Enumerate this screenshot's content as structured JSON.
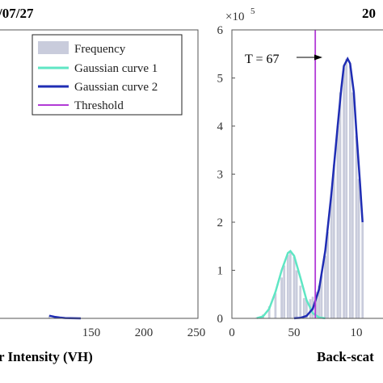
{
  "chart_data": [
    {
      "type": "bar",
      "title_fragment": "/07/27",
      "xlabel_fragment": "r Intensity (VH)",
      "x_ticks": [
        "150",
        "200",
        "250"
      ],
      "legend": {
        "placement": "top-right",
        "entries": [
          {
            "label": "Frequency",
            "color": "#c9ccdc"
          },
          {
            "label": "Gaussian curve 1",
            "color": "#5fe6c4"
          },
          {
            "label": "Gaussian curve 2",
            "color": "#1f2db4"
          },
          {
            "label": "Threshold",
            "color": "#b23ad6"
          }
        ]
      },
      "tail": {
        "x": [
          110,
          115,
          120,
          125,
          130
        ],
        "values": [
          6000,
          3500,
          1800,
          800,
          300
        ]
      },
      "curve2_tail": {
        "x": [
          110,
          115,
          120,
          125,
          130,
          135,
          140
        ],
        "values": [
          5500,
          3200,
          1600,
          700,
          300,
          100,
          20
        ]
      }
    },
    {
      "type": "bar",
      "title_fragment": "20",
      "xlabel_fragment": "Back-scat",
      "y_multiplier": "×10",
      "y_multiplier_exp": "5",
      "y_ticks": [
        "0",
        "1",
        "2",
        "3",
        "4",
        "5",
        "6"
      ],
      "x_ticks": [
        "0",
        "50",
        "10"
      ],
      "ylim": [
        0,
        600000
      ],
      "threshold": {
        "value": 67,
        "label": "T = 67"
      },
      "series": [
        {
          "name": "Frequency",
          "x": [
            20,
            25,
            30,
            35,
            40,
            42,
            45,
            47,
            50,
            52,
            55,
            58,
            60,
            63,
            65,
            68,
            70,
            72,
            75,
            77,
            80,
            82,
            85,
            87,
            90,
            92,
            95,
            97,
            100,
            102,
            105
          ],
          "values": [
            2000,
            8000,
            25000,
            52000,
            85000,
            110000,
            132000,
            140000,
            128000,
            100000,
            68000,
            42000,
            38000,
            40000,
            45000,
            55000,
            68000,
            90000,
            130000,
            180000,
            260000,
            320000,
            400000,
            470000,
            520000,
            540000,
            525000,
            470000,
            380000,
            290000,
            200000
          ]
        },
        {
          "name": "Gaussian curve 1",
          "x": [
            20,
            25,
            30,
            35,
            40,
            45,
            47,
            50,
            55,
            60,
            65,
            70,
            75
          ],
          "values": [
            500,
            4000,
            20000,
            55000,
            100000,
            136000,
            140000,
            130000,
            85000,
            38000,
            11000,
            2000,
            200
          ]
        },
        {
          "name": "Gaussian curve 2",
          "x": [
            50,
            55,
            60,
            65,
            70,
            75,
            80,
            85,
            88,
            90,
            93,
            95,
            98,
            100,
            103,
            105
          ],
          "values": [
            100,
            1000,
            5000,
            20000,
            60000,
            140000,
            260000,
            400000,
            480000,
            525000,
            540000,
            530000,
            470000,
            390000,
            280000,
            200000
          ]
        }
      ]
    }
  ]
}
